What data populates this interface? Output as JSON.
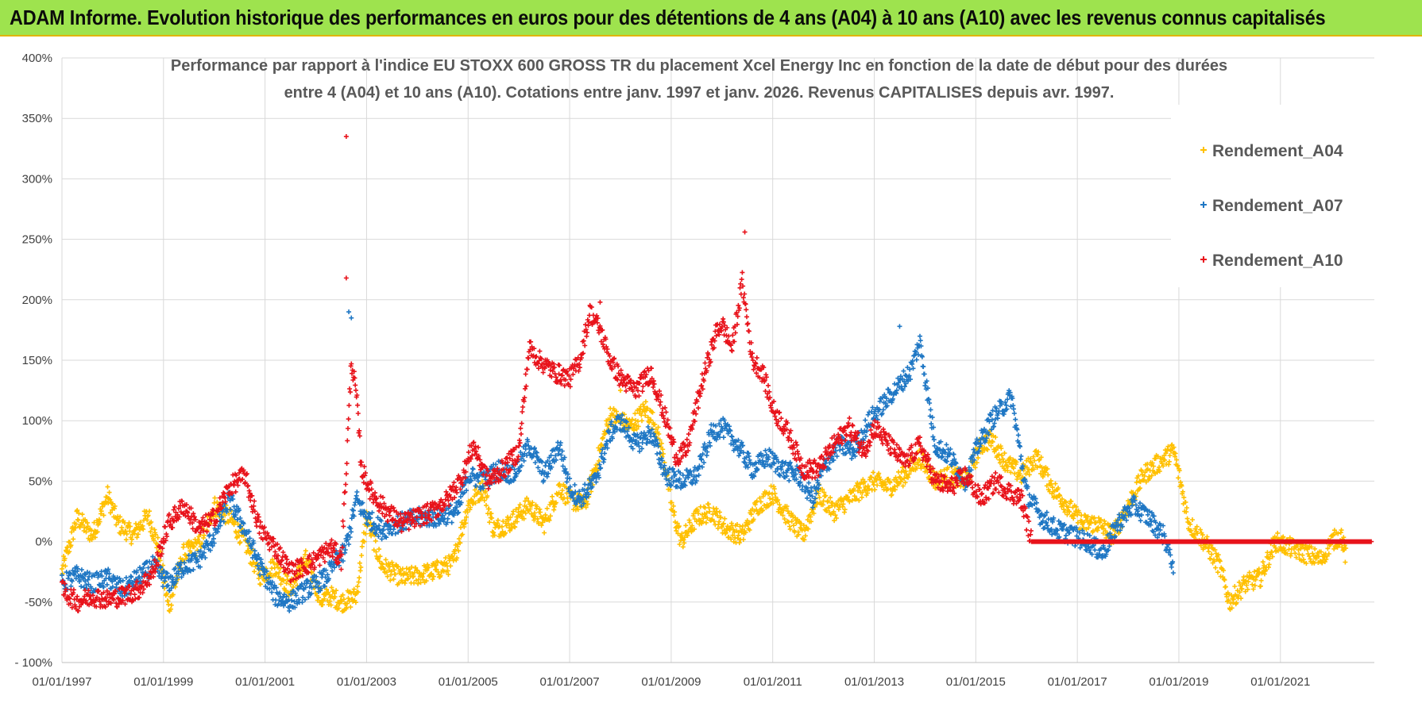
{
  "banner": {
    "title": "ADAM Informe. Evolution historique des performances en euros pour des détentions de 4 ans (A04) à 10 ans (A10) avec les revenus connus capitalisés",
    "background": "#9ee34e",
    "accent": "#e0b400"
  },
  "chart_data": {
    "type": "scatter",
    "title_line1": "Performance par rapport à l'indice EU STOXX 600 GROSS TR  du placement Xcel Energy Inc en fonction de la date de début pour des durées",
    "title_line2": "entre 4 (A04) et 10 ans (A10).  Cotations entre janv. 1997 et janv. 2026. Revenus CAPITALISES  depuis avr. 1997.",
    "xlabel": "",
    "ylabel": "",
    "xlim": [
      1997.0,
      2022.85
    ],
    "ylim": [
      -100,
      400
    ],
    "y_ticks": [
      400,
      350,
      300,
      250,
      200,
      150,
      100,
      50,
      0,
      -50,
      -100
    ],
    "y_tick_labels": [
      "400%",
      "350%",
      "300%",
      "250%",
      "200%",
      "150%",
      "100%",
      "50%",
      "0%",
      "-50%",
      "- 100%"
    ],
    "x_ticks": [
      1997,
      1999,
      2001,
      2003,
      2005,
      2007,
      2009,
      2011,
      2013,
      2015,
      2017,
      2019,
      2021
    ],
    "x_tick_labels": [
      "01/01/1997",
      "01/01/1999",
      "01/01/2001",
      "01/01/2003",
      "01/01/2005",
      "01/01/2007",
      "01/01/2009",
      "01/01/2011",
      "01/01/2013",
      "01/01/2015",
      "01/01/2017",
      "01/01/2019",
      "01/01/2021"
    ],
    "grid": true,
    "legend_position": "top-right",
    "marker": "+",
    "series": [
      {
        "name": "Rendement_A04",
        "color": "#ffc000",
        "x": [
          1997.0,
          1997.3,
          1997.6,
          1997.9,
          1998.1,
          1998.4,
          1998.7,
          1998.9,
          1999.1,
          1999.4,
          1999.7,
          2000.0,
          2000.3,
          2000.6,
          2000.9,
          2001.2,
          2001.5,
          2001.8,
          2002.1,
          2002.3,
          2002.5,
          2002.65,
          2002.8,
          2003.0,
          2003.3,
          2003.7,
          2004.0,
          2004.3,
          2004.7,
          2005.0,
          2005.3,
          2005.5,
          2005.8,
          2006.2,
          2006.5,
          2006.8,
          2007.0,
          2007.3,
          2007.5,
          2007.8,
          2008.0,
          2008.2,
          2008.5,
          2008.7,
          2008.9,
          2009.0,
          2009.2,
          2009.5,
          2009.8,
          2010.1,
          2010.4,
          2010.7,
          2011.0,
          2011.3,
          2011.6,
          2011.9,
          2012.2,
          2012.5,
          2012.8,
          2013.0,
          2013.3,
          2013.6,
          2013.9,
          2014.2,
          2014.5,
          2014.8,
          2015.1,
          2015.3,
          2015.6,
          2015.9,
          2016.2,
          2016.5,
          2016.8,
          2017.1,
          2017.4,
          2017.7,
          2018.0,
          2018.3,
          2018.6,
          2018.9,
          2019.2,
          2019.5,
          2019.8,
          2020.0,
          2020.3,
          2020.6,
          2020.9,
          2021.2,
          2021.5,
          2021.8,
          2022.0,
          2022.2,
          2022.3
        ],
        "y": [
          -25,
          20,
          5,
          38,
          15,
          5,
          22,
          -5,
          -55,
          -10,
          -3,
          30,
          20,
          0,
          -28,
          -20,
          -40,
          -15,
          -48,
          -45,
          -50,
          -48,
          -45,
          20,
          -20,
          -30,
          -28,
          -25,
          -18,
          30,
          45,
          10,
          15,
          30,
          15,
          45,
          35,
          30,
          60,
          105,
          100,
          95,
          110,
          95,
          60,
          30,
          0,
          20,
          25,
          10,
          5,
          30,
          40,
          20,
          5,
          40,
          25,
          35,
          45,
          50,
          45,
          55,
          70,
          50,
          55,
          50,
          80,
          85,
          65,
          55,
          70,
          45,
          30,
          15,
          15,
          5,
          30,
          55,
          65,
          75,
          15,
          0,
          -20,
          -50,
          -35,
          -30,
          0,
          -5,
          -10,
          -15,
          0,
          5,
          -15
        ]
      },
      {
        "name": "Rendement_A07",
        "color": "#1f77c4",
        "x": [
          1997.0,
          1997.3,
          1997.6,
          1997.9,
          1998.2,
          1998.5,
          1998.8,
          1999.1,
          1999.4,
          1999.7,
          2000.0,
          2000.3,
          2000.6,
          2000.9,
          2001.2,
          2001.5,
          2001.8,
          2002.0,
          2002.2,
          2002.4,
          2002.55,
          2002.65,
          2002.8,
          2003.0,
          2003.3,
          2003.6,
          2004.0,
          2004.4,
          2004.8,
          2005.0,
          2005.3,
          2005.6,
          2005.9,
          2006.2,
          2006.5,
          2006.8,
          2007.0,
          2007.2,
          2007.5,
          2007.8,
          2008.0,
          2008.3,
          2008.6,
          2008.9,
          2009.2,
          2009.5,
          2009.8,
          2010.0,
          2010.3,
          2010.6,
          2010.9,
          2011.2,
          2011.5,
          2011.8,
          2012.0,
          2012.3,
          2012.6,
          2012.9,
          2013.1,
          2013.4,
          2013.7,
          2013.9,
          2014.2,
          2014.5,
          2014.8,
          2015.0,
          2015.3,
          2015.5,
          2015.7,
          2015.85,
          2016.0,
          2016.3,
          2016.6,
          2016.9,
          2017.2,
          2017.5,
          2017.8,
          2018.1,
          2018.4,
          2018.7,
          2018.9
        ],
        "y": [
          -35,
          -28,
          -35,
          -30,
          -40,
          -30,
          -20,
          -35,
          -20,
          -15,
          5,
          35,
          10,
          -20,
          -45,
          -50,
          -40,
          -35,
          -30,
          -15,
          -10,
          5,
          35,
          20,
          10,
          15,
          20,
          20,
          25,
          55,
          50,
          60,
          55,
          80,
          55,
          80,
          45,
          35,
          50,
          90,
          100,
          80,
          90,
          55,
          50,
          55,
          90,
          95,
          80,
          60,
          70,
          60,
          55,
          35,
          60,
          80,
          75,
          100,
          110,
          125,
          140,
          165,
          80,
          70,
          50,
          75,
          100,
          110,
          120,
          80,
          40,
          20,
          10,
          5,
          0,
          -10,
          15,
          30,
          20,
          5,
          -20
        ]
      },
      {
        "name": "Rendement_A10",
        "color": "#e8131b",
        "x": [
          1997.0,
          1997.3,
          1997.6,
          1997.9,
          1998.2,
          1998.5,
          1998.8,
          1999.1,
          1999.4,
          1999.7,
          2000.0,
          2000.3,
          2000.6,
          2000.9,
          2001.2,
          2001.5,
          2001.8,
          2002.0,
          2002.3,
          2002.5,
          2002.6,
          2002.7,
          2002.8,
          2002.9,
          2003.1,
          2003.4,
          2003.7,
          2004.0,
          2004.3,
          2004.6,
          2004.9,
          2005.1,
          2005.4,
          2005.7,
          2006.0,
          2006.2,
          2006.4,
          2006.7,
          2007.0,
          2007.2,
          2007.4,
          2007.6,
          2007.8,
          2008.0,
          2008.3,
          2008.6,
          2008.9,
          2009.1,
          2009.3,
          2009.6,
          2009.9,
          2010.0,
          2010.2,
          2010.4,
          2010.6,
          2010.8,
          2011.0,
          2011.3,
          2011.6,
          2011.9,
          2012.2,
          2012.5,
          2012.8,
          2013.0,
          2013.3,
          2013.6,
          2013.9,
          2014.2,
          2014.5,
          2014.8,
          2015.1,
          2015.4,
          2015.7,
          2015.9,
          2016.1,
          2022.8
        ],
        "y": [
          -40,
          -50,
          -45,
          -48,
          -45,
          -40,
          -25,
          15,
          30,
          10,
          20,
          45,
          55,
          10,
          -5,
          -25,
          -20,
          -15,
          -5,
          -15,
          60,
          150,
          120,
          60,
          40,
          25,
          15,
          20,
          25,
          35,
          55,
          80,
          50,
          60,
          75,
          160,
          150,
          140,
          135,
          150,
          190,
          175,
          150,
          135,
          125,
          140,
          100,
          70,
          75,
          130,
          175,
          180,
          160,
          215,
          150,
          140,
          110,
          90,
          60,
          60,
          80,
          95,
          75,
          95,
          80,
          65,
          80,
          50,
          45,
          55,
          35,
          50,
          40,
          35,
          0,
          0
        ]
      }
    ]
  }
}
